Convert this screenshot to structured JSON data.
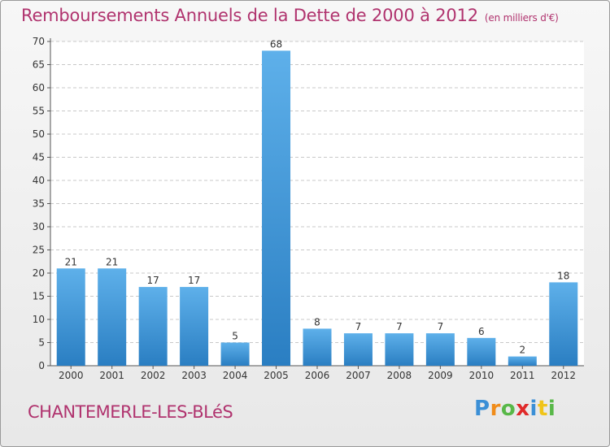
{
  "header": {
    "title": "Remboursements Annuels de la Dette de 2000 à 2012",
    "subtitle": "(en milliers d'€)"
  },
  "footer": {
    "commune": "CHANTEMERLE-LES-BLéS",
    "logo": "Proxiti"
  },
  "colors": {
    "title": "#b0336e",
    "bar_light": "#5eb0ea",
    "bar_dark": "#2a7ec2",
    "grid": "#c8c8c8"
  },
  "chart_data": {
    "type": "bar",
    "categories": [
      "2000",
      "2001",
      "2002",
      "2003",
      "2004",
      "2005",
      "2006",
      "2007",
      "2008",
      "2009",
      "2010",
      "2011",
      "2012"
    ],
    "values": [
      21,
      21,
      17,
      17,
      5,
      68,
      8,
      7,
      7,
      7,
      6,
      2,
      18
    ],
    "data_labels": [
      "21",
      "21",
      "17",
      "17",
      "5",
      "68",
      "8",
      "7",
      "7",
      "7",
      "6",
      "2",
      "18"
    ],
    "ylim": [
      0,
      70
    ],
    "yticks": [
      0,
      5,
      10,
      15,
      20,
      25,
      30,
      35,
      40,
      45,
      50,
      55,
      60,
      65,
      70
    ],
    "grid": true,
    "legend": "none"
  }
}
